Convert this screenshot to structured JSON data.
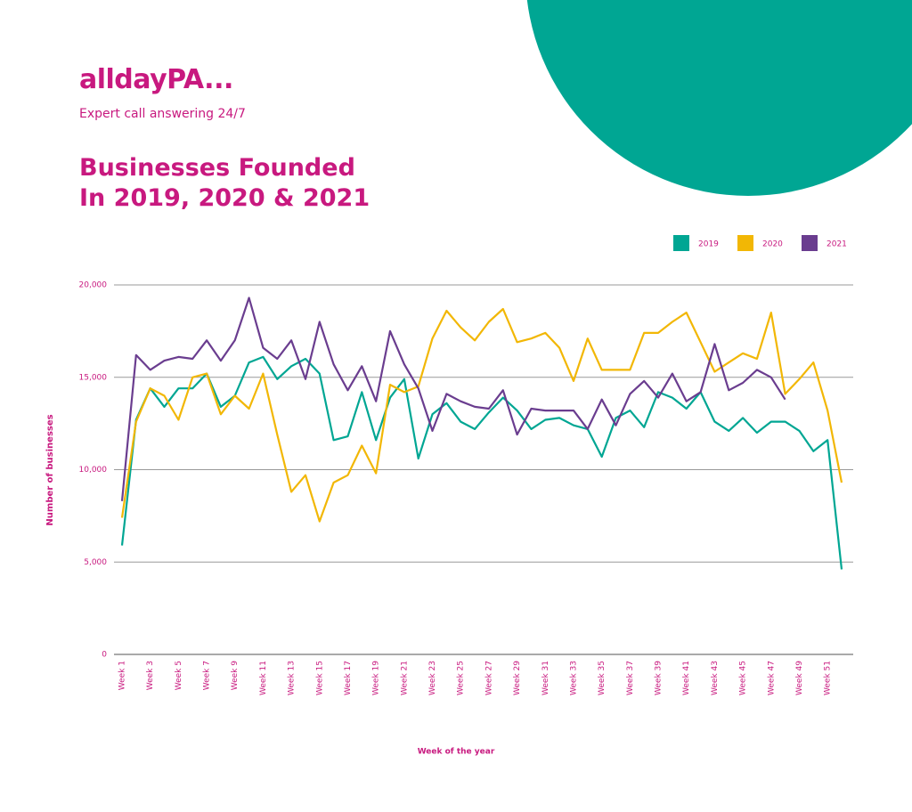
{
  "brand": {
    "logo": "alldayPA...",
    "tagline": "Expert call answering 24/7"
  },
  "chart_data": {
    "type": "line",
    "title": "Businesses Founded In 2019, 2020 & 2021",
    "x_label": "Week of the year",
    "y_label": "Number of businesses",
    "categories": [
      "Week 1",
      null,
      "Week 3",
      null,
      "Week 5",
      null,
      "Week 7",
      null,
      "Week 9",
      null,
      "Week 11",
      null,
      "Week 13",
      null,
      "Week 15",
      null,
      "Week 17",
      null,
      "Week 19",
      null,
      "Week 21",
      null,
      "Week 23",
      null,
      "Week 25",
      null,
      "Week 27",
      null,
      "Week 29",
      null,
      "Week 31",
      null,
      "Week 33",
      null,
      "Week 35",
      null,
      "Week 37",
      null,
      "Week 39",
      null,
      "Week 41",
      null,
      "Week 43",
      null,
      "Week 45",
      null,
      "Week 47",
      null,
      "Week 49",
      null,
      "Week 51",
      null
    ],
    "series": [
      {
        "name": "2019",
        "color": "#00a693",
        "values": [
          5900,
          12700,
          14400,
          13400,
          14400,
          14400,
          15200,
          13400,
          14000,
          15800,
          16100,
          14900,
          15600,
          16000,
          15200,
          11600,
          11800,
          14200,
          11600,
          13900,
          14900,
          10600,
          13000,
          13600,
          12600,
          12200,
          13100,
          13900,
          13200,
          12200,
          12700,
          12800,
          12400,
          12200,
          10700,
          12800,
          13200,
          12300,
          14200,
          13900,
          13300,
          14200,
          12600,
          12100,
          12800,
          12000,
          12600,
          12600,
          12100,
          11000,
          11600,
          4600
        ]
      },
      {
        "name": "2020",
        "color": "#f2b705",
        "values": [
          7400,
          12600,
          14400,
          14000,
          12700,
          15000,
          15200,
          13000,
          14000,
          13300,
          15200,
          11900,
          8800,
          9700,
          7200,
          9300,
          9700,
          11300,
          9800,
          14600,
          14200,
          14500,
          17100,
          18600,
          17700,
          17000,
          18000,
          18700,
          16900,
          17100,
          17400,
          16600,
          14800,
          17100,
          15400,
          15400,
          15400,
          17400,
          17400,
          18000,
          18500,
          16900,
          15300,
          15800,
          16300,
          16000,
          18500,
          14100,
          14900,
          15800,
          13200,
          9300
        ]
      },
      {
        "name": "2021",
        "color": "#6a3d8f",
        "values": [
          8300,
          16200,
          15400,
          15900,
          16100,
          16000,
          17000,
          15900,
          17000,
          19300,
          16600,
          16000,
          17000,
          14900,
          18000,
          15700,
          14300,
          15600,
          13700,
          17500,
          15700,
          14400,
          12100,
          14100,
          13700,
          13400,
          13300,
          14300,
          11900,
          13300,
          13200,
          13200,
          13200,
          12200,
          13800,
          12400,
          14100,
          14800,
          13900,
          15200,
          13700,
          14200,
          16800,
          14300,
          14700,
          15400,
          15000,
          13800,
          null,
          null,
          null,
          null
        ]
      }
    ],
    "ylim": [
      0,
      20000
    ],
    "yticks": [
      0,
      {
        "value": 5000,
        "label": "5,000"
      },
      {
        "value": 10000,
        "label": "10,000"
      },
      {
        "value": 15000,
        "label": "15,000"
      },
      {
        "value": 20000,
        "label": "20,000"
      }
    ],
    "grid": true,
    "legend": "top-right"
  }
}
